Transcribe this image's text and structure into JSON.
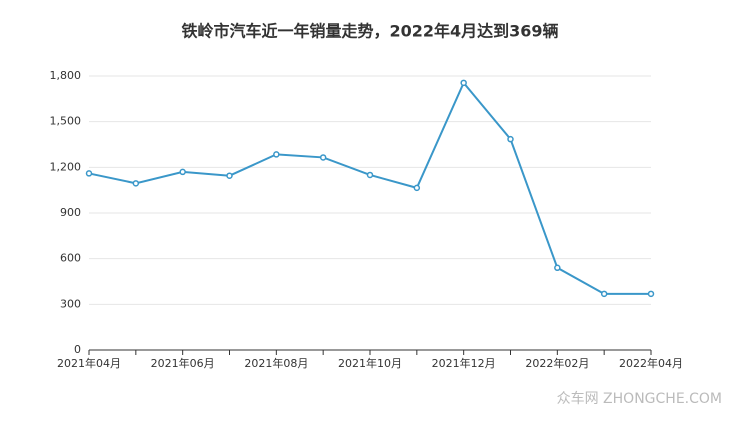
{
  "chart_data": {
    "type": "line",
    "title": "铁岭市汽车近一年销量走势，2022年4月达到369辆",
    "categories": [
      "2021年04月",
      null,
      "2021年06月",
      null,
      "2021年08月",
      null,
      "2021年10月",
      null,
      "2021年12月",
      null,
      "2022年02月",
      null,
      "2022年04月"
    ],
    "series": [
      {
        "name": "销量",
        "color": "#3a97c9",
        "values": [
          1160,
          1095,
          1170,
          1145,
          1285,
          1265,
          1150,
          1065,
          1755,
          1385,
          540,
          369,
          369
        ]
      }
    ],
    "ylim": [
      0,
      1800
    ],
    "yticks": [
      0,
      300,
      600,
      900,
      {
        "value": 1200,
        "label": "1,200"
      },
      {
        "value": 1500,
        "label": "1,500"
      },
      {
        "value": 1800,
        "label": "1,800"
      }
    ],
    "grid": true,
    "watermark": "众车网 ZHONGCHE.COM"
  }
}
